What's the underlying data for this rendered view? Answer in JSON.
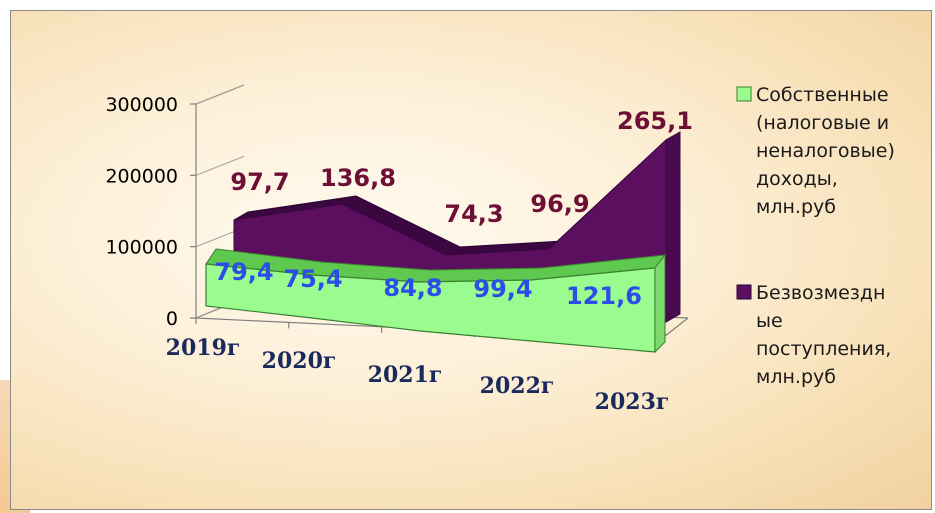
{
  "chart_data": {
    "type": "area",
    "view": "3d",
    "categories": [
      "2019г",
      "2020г",
      "2021г",
      "2022г",
      "2023г"
    ],
    "y_ticks": [
      "0",
      "100000",
      "200000",
      "300000"
    ],
    "ylim": [
      0,
      300000
    ],
    "grid": false,
    "legend_position": "right",
    "series": [
      {
        "name": "Безвозмездные поступления, млн.руб",
        "legend_lines": [
          "Безвозмездн",
          "ые",
          "поступления,",
          "млн.руб"
        ],
        "values": [
          97.7,
          136.8,
          74.3,
          96.9,
          265.1
        ],
        "labels": [
          "97,7",
          "136,8",
          "74,3",
          "96,9",
          "265,1"
        ],
        "color": "#5b0f5e"
      },
      {
        "name": "Собственные (налоговые и неналоговые) доходы, млн.руб",
        "legend_lines": [
          "Собственные",
          "(налоговые и",
          "неналоговые)",
          "доходы,",
          "млн.руб"
        ],
        "values": [
          79.4,
          75.4,
          84.8,
          99.4,
          121.6
        ],
        "labels": [
          "79,4",
          "75,4",
          "84,8",
          "99,4",
          "121,6"
        ],
        "color": "#9afc8e"
      }
    ]
  }
}
